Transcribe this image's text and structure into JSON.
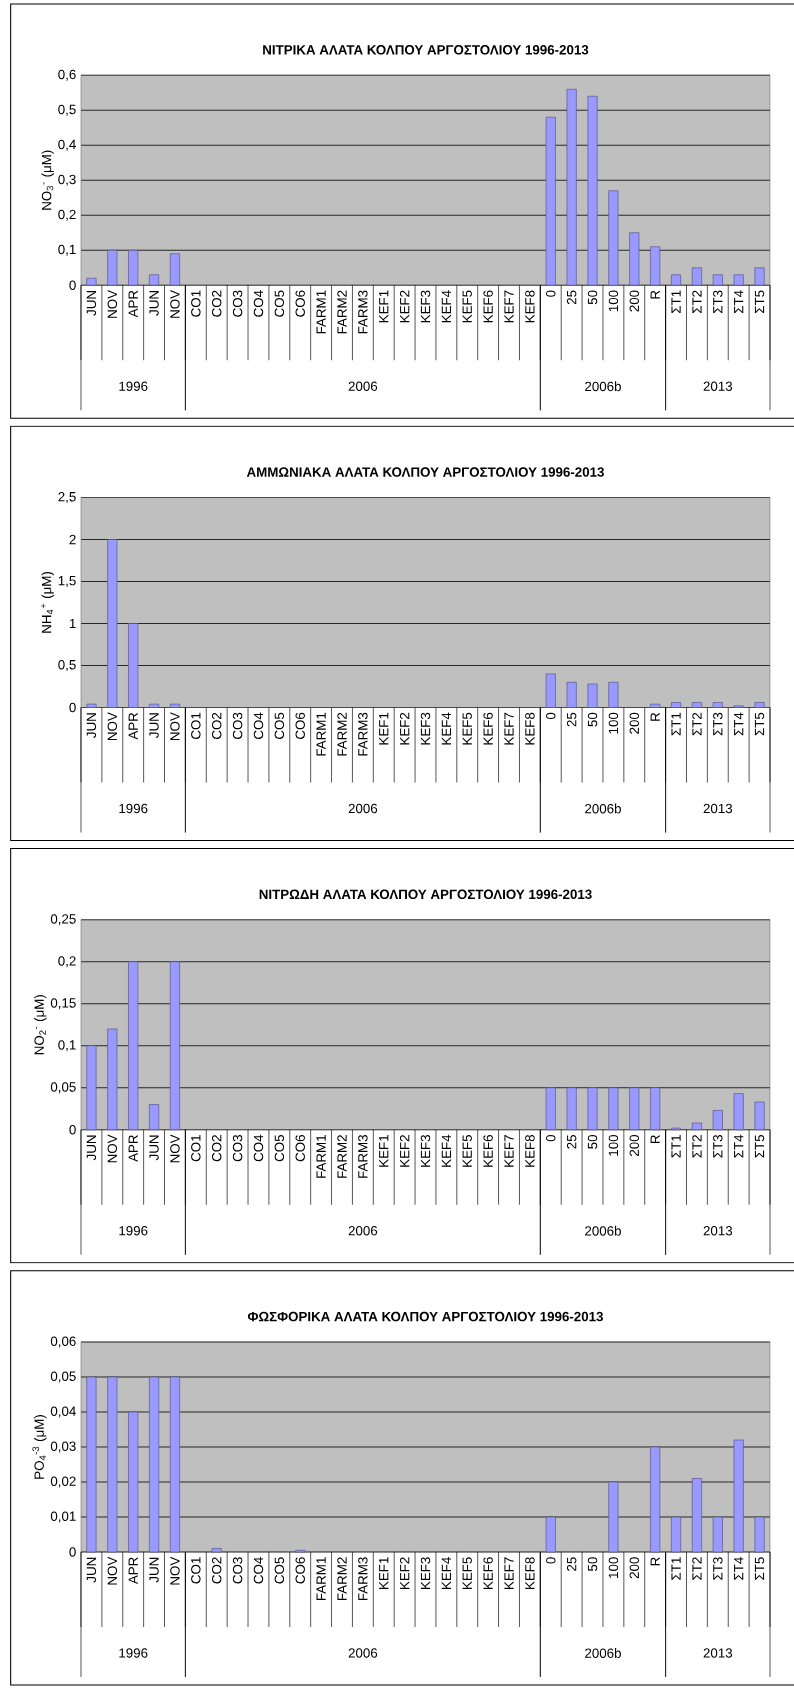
{
  "chart_data": [
    {
      "type": "bar",
      "title": "ΝΙΤΡΙΚΑ ΑΛΑΤΑ ΚΟΛΠΟΥ ΑΡΓΟΣΤΟΛΙΟΥ 1996-2013",
      "ylabel": "NO$_{3}$$^{-}$ (μM)",
      "color": "#9999ff",
      "grid": "y",
      "categories": [
        "JUN",
        "NOV",
        "APR",
        "JUN",
        "NOV",
        "CO1",
        "CO2",
        "CO3",
        "CO4",
        "CO5",
        "CO6",
        "FARM1",
        "FARM2",
        "FARM3",
        "KEF1",
        "KEF2",
        "KEF3",
        "KEF4",
        "KEF5",
        "KEF6",
        "KEF7",
        "KEF8",
        "0",
        "25",
        "50",
        "100",
        "200",
        "R",
        "ΣΤ1",
        "ΣΤ2",
        "ΣΤ3",
        "ΣΤ4",
        "ΣΤ5"
      ],
      "values": [
        0.02,
        0.1,
        0.1,
        0.03,
        0.09,
        null,
        null,
        null,
        null,
        null,
        null,
        null,
        null,
        null,
        null,
        null,
        null,
        null,
        null,
        null,
        null,
        null,
        0.48,
        0.56,
        0.54,
        0.27,
        0.15,
        0.11,
        0.03,
        0.05,
        0.03,
        0.03,
        0.05
      ],
      "ylim": [
        0,
        0.6
      ],
      "yticks": [
        0,
        {
          "value": 0.1,
          "label": "0,1"
        },
        {
          "value": 0.2,
          "label": "0,2"
        },
        {
          "value": 0.3,
          "label": "0,3"
        },
        {
          "value": 0.4,
          "label": "0,4"
        },
        {
          "value": 0.5,
          "label": "0,5"
        },
        {
          "value": 0.6,
          "label": "0,6"
        }
      ],
      "annotations": [
        "1996",
        "2006",
        "2006b",
        "2013"
      ]
    },
    {
      "type": "bar",
      "title": "ΑΜΜΩΝΙΑΚΑ ΑΛΑΤΑ ΚΟΛΠΟΥ ΑΡΓΟΣΤΟΛΙΟΥ 1996-2013",
      "ylabel": "NH$_{4}$$^{+}$ (μM)",
      "color": "#9999ff",
      "grid": "y",
      "categories": [
        "JUN",
        "NOV",
        "APR",
        "JUN",
        "NOV",
        "CO1",
        "CO2",
        "CO3",
        "CO4",
        "CO5",
        "CO6",
        "FARM1",
        "FARM2",
        "FARM3",
        "KEF1",
        "KEF2",
        "KEF3",
        "KEF4",
        "KEF5",
        "KEF6",
        "KEF7",
        "KEF8",
        "0",
        "25",
        "50",
        "100",
        "200",
        "R",
        "ΣΤ1",
        "ΣΤ2",
        "ΣΤ3",
        "ΣΤ4",
        "ΣΤ5"
      ],
      "values": [
        0.04,
        2,
        1,
        0.04,
        0.04,
        null,
        null,
        null,
        null,
        null,
        null,
        null,
        null,
        null,
        null,
        null,
        null,
        null,
        null,
        null,
        null,
        null,
        0.4,
        0.3,
        0.28,
        0.3,
        null,
        0.04,
        0.06,
        0.06,
        0.06,
        0.02,
        0.06
      ],
      "ylim": [
        0,
        2.5
      ],
      "yticks": [
        0,
        {
          "value": 0.5,
          "label": "0,5"
        },
        1,
        {
          "value": 1.5,
          "label": "1,5"
        },
        2,
        {
          "value": 2.5,
          "label": "2,5"
        }
      ],
      "annotations": [
        "1996",
        "2006",
        "2006b",
        "2013"
      ]
    },
    {
      "type": "bar",
      "title": "ΝΙΤΡΩΔΗ ΑΛΑΤΑ ΚΟΛΠΟΥ ΑΡΓΟΣΤΟΛΙΟΥ 1996-2013",
      "ylabel": "NO$_{2}$$^{-}$ (μM)",
      "color": "#9999ff",
      "grid": "y",
      "categories": [
        "JUN",
        "NOV",
        "APR",
        "JUN",
        "NOV",
        "CO1",
        "CO2",
        "CO3",
        "CO4",
        "CO5",
        "CO6",
        "FARM1",
        "FARM2",
        "FARM3",
        "KEF1",
        "KEF2",
        "KEF3",
        "KEF4",
        "KEF5",
        "KEF6",
        "KEF7",
        "KEF8",
        "0",
        "25",
        "50",
        "100",
        "200",
        "R",
        "ΣΤ1",
        "ΣΤ2",
        "ΣΤ3",
        "ΣΤ4",
        "ΣΤ5"
      ],
      "values": [
        0.1,
        0.12,
        0.2,
        0.03,
        0.2,
        null,
        null,
        null,
        null,
        null,
        null,
        null,
        null,
        null,
        null,
        null,
        null,
        null,
        null,
        null,
        null,
        null,
        0.05,
        0.05,
        0.05,
        0.05,
        0.05,
        0.05,
        0.002,
        0.008,
        0.023,
        0.043,
        0.033
      ],
      "ylim": [
        0,
        0.25
      ],
      "yticks": [
        0,
        {
          "value": 0.05,
          "label": "0,05"
        },
        {
          "value": 0.1,
          "label": "0,1"
        },
        {
          "value": 0.15,
          "label": "0,15"
        },
        {
          "value": 0.2,
          "label": "0,2"
        },
        {
          "value": 0.25,
          "label": "0,25"
        }
      ],
      "annotations": [
        "1996",
        "2006",
        "2006b",
        "2013"
      ]
    },
    {
      "type": "bar",
      "title": "ΦΩΣΦΟΡΙΚΑ ΑΛΑΤΑ ΚΟΛΠΟΥ ΑΡΓΟΣΤΟΛΙΟΥ 1996-2013",
      "ylabel": "PO$_{4}$$^{-3}$ (μM)",
      "color": "#9999ff",
      "grid": "y",
      "categories": [
        "JUN",
        "NOV",
        "APR",
        "JUN",
        "NOV",
        "CO1",
        "CO2",
        "CO3",
        "CO4",
        "CO5",
        "CO6",
        "FARM1",
        "FARM2",
        "FARM3",
        "KEF1",
        "KEF2",
        "KEF3",
        "KEF4",
        "KEF5",
        "KEF6",
        "KEF7",
        "KEF8",
        "0",
        "25",
        "50",
        "100",
        "200",
        "R",
        "ΣΤ1",
        "ΣΤ2",
        "ΣΤ3",
        "ΣΤ4",
        "ΣΤ5"
      ],
      "values": [
        0.05,
        0.05,
        0.04,
        0.05,
        0.05,
        null,
        0.001,
        null,
        null,
        null,
        0.0005,
        null,
        null,
        null,
        null,
        null,
        null,
        null,
        null,
        null,
        null,
        null,
        0.01,
        null,
        null,
        0.02,
        null,
        0.03,
        0.01,
        0.021,
        0.01,
        0.032,
        0.01
      ],
      "ylim": [
        0,
        0.06
      ],
      "yticks": [
        0,
        {
          "value": 0.01,
          "label": "0,01"
        },
        {
          "value": 0.02,
          "label": "0,02"
        },
        {
          "value": 0.03,
          "label": "0,03"
        },
        {
          "value": 0.04,
          "label": "0,04"
        },
        {
          "value": 0.05,
          "label": "0,05"
        },
        {
          "value": 0.06,
          "label": "0,06"
        }
      ],
      "annotations": [
        "1996",
        "2006",
        "2006b",
        "2013"
      ]
    }
  ]
}
